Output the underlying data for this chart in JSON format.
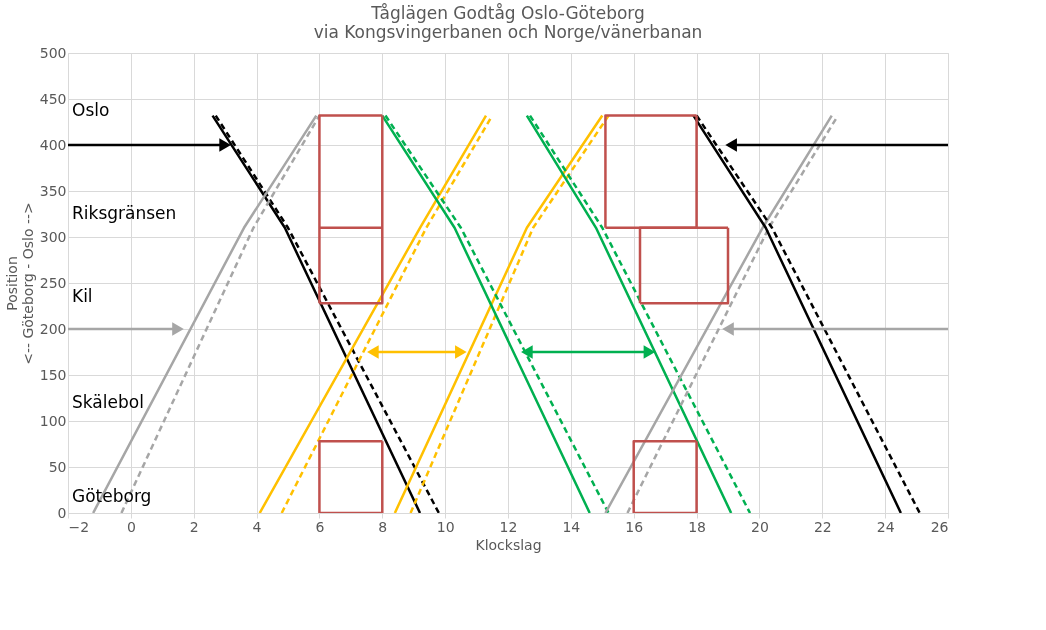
{
  "chart_data": {
    "type": "line",
    "title": "Tåglägen Godtåg Oslo-Göteborg\nvia Kongsvingerbanen och Norge/vänerbanan",
    "xlabel": "Klockslag",
    "ylabel": "Position\n<-- Göteborg - Oslo -->",
    "xlim": [
      -2,
      26
    ],
    "xticks": [
      -2,
      0,
      2,
      4,
      6,
      8,
      10,
      12,
      14,
      16,
      18,
      20,
      22,
      24,
      26
    ],
    "ylim": [
      0,
      500
    ],
    "yticks": [
      0,
      50,
      100,
      150,
      200,
      250,
      300,
      350,
      400,
      450,
      500
    ],
    "grid": true,
    "series": [
      {
        "color": "#000000",
        "x": [
          2.6,
          4.9,
          9.2
        ],
        "values": [
          432,
          310,
          0
        ],
        "line_style": "solid"
      },
      {
        "color": "#000000",
        "x": [
          2.7,
          5.0,
          9.8
        ],
        "values": [
          432,
          310,
          0
        ],
        "line_style": "dashed"
      },
      {
        "color": "#a6a6a6",
        "x": [
          -1.2,
          3.6,
          5.9
        ],
        "values": [
          0,
          310,
          432
        ],
        "line_style": "solid"
      },
      {
        "color": "#a6a6a6",
        "x": [
          -0.3,
          3.9,
          6.0
        ],
        "values": [
          0,
          310,
          432
        ],
        "line_style": "dashed"
      },
      {
        "color": "#ffc000",
        "x": [
          4.1,
          9.2,
          11.3
        ],
        "values": [
          0,
          310,
          432
        ],
        "line_style": "solid"
      },
      {
        "color": "#ffc000",
        "x": [
          4.8,
          9.4,
          11.5
        ],
        "values": [
          0,
          310,
          432
        ],
        "line_style": "dashed"
      },
      {
        "color": "#ffc000",
        "x": [
          8.4,
          12.6,
          15.0
        ],
        "values": [
          0,
          310,
          432
        ],
        "line_style": "solid"
      },
      {
        "color": "#ffc000",
        "x": [
          8.9,
          12.8,
          15.2
        ],
        "values": [
          0,
          310,
          432
        ],
        "line_style": "dashed"
      },
      {
        "color": "#00b050",
        "x": [
          8.0,
          10.3,
          14.6
        ],
        "values": [
          432,
          310,
          0
        ],
        "line_style": "solid"
      },
      {
        "color": "#00b050",
        "x": [
          8.1,
          10.5,
          15.2
        ],
        "values": [
          432,
          310,
          0
        ],
        "line_style": "dashed"
      },
      {
        "color": "#00b050",
        "x": [
          12.6,
          14.8,
          19.1
        ],
        "values": [
          432,
          310,
          0
        ],
        "line_style": "solid"
      },
      {
        "color": "#00b050",
        "x": [
          12.7,
          15.0,
          19.7
        ],
        "values": [
          432,
          310,
          0
        ],
        "line_style": "dashed"
      },
      {
        "color": "#a6a6a6",
        "x": [
          15.1,
          20.1,
          22.3
        ],
        "values": [
          0,
          310,
          432
        ],
        "line_style": "solid"
      },
      {
        "color": "#a6a6a6",
        "x": [
          15.8,
          20.3,
          22.5
        ],
        "values": [
          0,
          310,
          432
        ],
        "line_style": "dashed"
      },
      {
        "color": "#000000",
        "x": [
          17.9,
          20.2,
          24.5
        ],
        "values": [
          432,
          310,
          0
        ],
        "line_style": "solid"
      },
      {
        "color": "#000000",
        "x": [
          18.0,
          20.4,
          25.1
        ],
        "values": [
          432,
          310,
          0
        ],
        "line_style": "dashed"
      },
      {
        "color": "#c0504d",
        "x": [
          6,
          8,
          8
        ],
        "values": [
          228,
          228,
          432
        ],
        "line_style": "solid"
      },
      {
        "color": "#c0504d",
        "x": [
          6,
          6,
          8
        ],
        "values": [
          228,
          432,
          432
        ],
        "line_style": "solid"
      },
      {
        "color": "#c0504d",
        "x": [
          6,
          8
        ],
        "values": [
          310,
          310
        ],
        "line_style": "solid"
      },
      {
        "color": "#c0504d",
        "x": [
          15.1,
          18,
          18
        ],
        "values": [
          310,
          310,
          432
        ],
        "line_style": "solid"
      },
      {
        "color": "#c0504d",
        "x": [
          15.1,
          15.1,
          18
        ],
        "values": [
          310,
          432,
          432
        ],
        "line_style": "solid"
      },
      {
        "color": "#c0504d",
        "x": [
          16.2,
          19,
          19
        ],
        "values": [
          228,
          228,
          310
        ],
        "line_style": "solid"
      },
      {
        "color": "#c0504d",
        "x": [
          16.2,
          16.2,
          19
        ],
        "values": [
          228,
          310,
          310
        ],
        "line_style": "solid"
      },
      {
        "color": "#c0504d",
        "x": [
          6,
          8,
          8
        ],
        "values": [
          0,
          0,
          78
        ],
        "line_style": "solid"
      },
      {
        "color": "#c0504d",
        "x": [
          6,
          6,
          8
        ],
        "values": [
          0,
          78,
          78
        ],
        "line_style": "solid"
      },
      {
        "color": "#c0504d",
        "x": [
          16,
          18,
          18
        ],
        "values": [
          0,
          0,
          78
        ],
        "line_style": "solid"
      },
      {
        "color": "#c0504d",
        "x": [
          16,
          16,
          18
        ],
        "values": [
          0,
          78,
          78
        ],
        "line_style": "solid"
      },
      {
        "color": "#000000",
        "x": [
          -2,
          3.0
        ],
        "values": [
          400,
          400
        ],
        "line_style": "solid",
        "marker": "triangle"
      },
      {
        "color": "#000000",
        "x": [
          26,
          19.1
        ],
        "values": [
          400,
          400
        ],
        "line_style": "solid",
        "marker": "triangle"
      },
      {
        "color": "#a6a6a6",
        "x": [
          -2,
          1.5
        ],
        "values": [
          200,
          200
        ],
        "line_style": "solid",
        "marker": "triangle"
      },
      {
        "color": "#a6a6a6",
        "x": [
          26,
          19.0
        ],
        "values": [
          200,
          200
        ],
        "line_style": "solid",
        "marker": "triangle"
      },
      {
        "color": "#ffc000",
        "x": [
          7.7,
          10.5
        ],
        "values": [
          175,
          175
        ],
        "line_style": "solid",
        "marker": "triangle"
      },
      {
        "color": "#00b050",
        "x": [
          12.6,
          16.5
        ],
        "values": [
          175,
          175
        ],
        "line_style": "solid",
        "marker": "triangle"
      }
    ],
    "annotations": [
      "Oslo",
      "Riksgränsen",
      "Kil",
      "Skälebol",
      "Göteborg"
    ]
  }
}
